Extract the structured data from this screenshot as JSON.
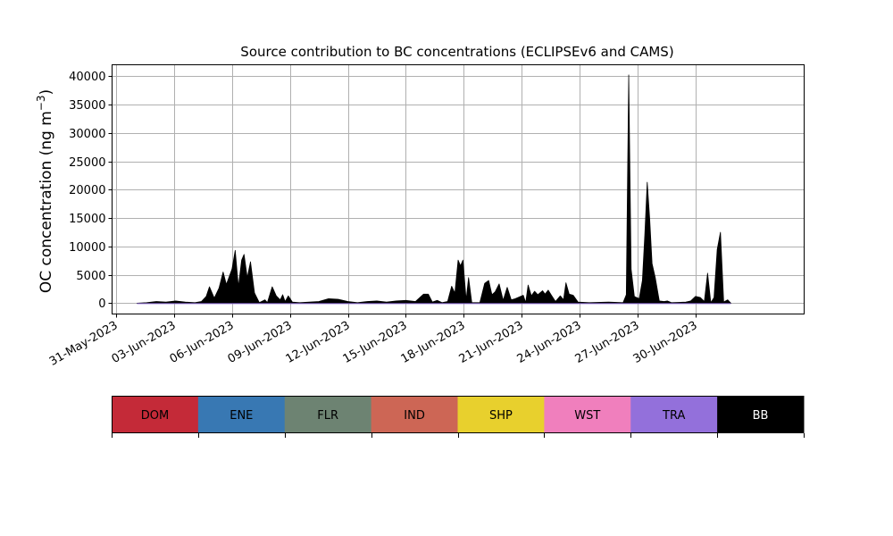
{
  "chart_data": {
    "type": "area",
    "title": "Source contribution to BC concentrations (ECLIPSEv6 and CAMS)",
    "ylabel_main": "OC concentration (ng m",
    "ylabel_sup": "−3",
    "ylabel_close": ")",
    "xlabel": "",
    "ylim": [
      -1900,
      42000
    ],
    "yticks": [
      0,
      5000,
      10000,
      15000,
      20000,
      25000,
      30000,
      35000,
      40000
    ],
    "ytick_labels": [
      "0",
      "5000",
      "10000",
      "15000",
      "20000",
      "25000",
      "30000",
      "35000",
      "40000"
    ],
    "x_date_range": [
      "2023-05-30T19:00",
      "2023-07-05T15:00"
    ],
    "xtick_labels": [
      "31-May-2023",
      "03-Jun-2023",
      "06-Jun-2023",
      "09-Jun-2023",
      "12-Jun-2023",
      "15-Jun-2023",
      "18-Jun-2023",
      "21-Jun-2023",
      "24-Jun-2023",
      "27-Jun-2023",
      "30-Jun-2023"
    ],
    "xtick_dates": [
      "2023-05-31",
      "2023-06-03",
      "2023-06-06",
      "2023-06-09",
      "2023-06-12",
      "2023-06-15",
      "2023-06-18",
      "2023-06-21",
      "2023-06-24",
      "2023-06-27",
      "2023-06-30"
    ],
    "grid": true,
    "series": [
      {
        "name": "BB",
        "color": "#000000",
        "points": [
          [
            "2023-06-01T02:00",
            0
          ],
          [
            "2023-06-01T14:00",
            100
          ],
          [
            "2023-06-02T02:00",
            300
          ],
          [
            "2023-06-02T14:00",
            200
          ],
          [
            "2023-06-03T02:00",
            400
          ],
          [
            "2023-06-03T14:00",
            200
          ],
          [
            "2023-06-04T02:00",
            100
          ],
          [
            "2023-06-04T10:00",
            300
          ],
          [
            "2023-06-04T16:00",
            1200
          ],
          [
            "2023-06-04T20:00",
            2900
          ],
          [
            "2023-06-05T02:00",
            900
          ],
          [
            "2023-06-05T08:00",
            2700
          ],
          [
            "2023-06-05T13:00",
            5500
          ],
          [
            "2023-06-05T17:00",
            3300
          ],
          [
            "2023-06-06T00:00",
            6000
          ],
          [
            "2023-06-06T04:00",
            9300
          ],
          [
            "2023-06-06T08:00",
            2900
          ],
          [
            "2023-06-06T12:00",
            7600
          ],
          [
            "2023-06-06T15:00",
            8600
          ],
          [
            "2023-06-06T19:00",
            4500
          ],
          [
            "2023-06-06T23:00",
            7300
          ],
          [
            "2023-06-07T04:00",
            1800
          ],
          [
            "2023-06-07T10:00",
            100
          ],
          [
            "2023-06-07T17:00",
            600
          ],
          [
            "2023-06-07T20:00",
            100
          ],
          [
            "2023-06-08T02:00",
            2900
          ],
          [
            "2023-06-08T07:00",
            1300
          ],
          [
            "2023-06-08T12:00",
            600
          ],
          [
            "2023-06-08T15:00",
            1500
          ],
          [
            "2023-06-08T18:00",
            300
          ],
          [
            "2023-06-08T22:00",
            1300
          ],
          [
            "2023-06-09T03:00",
            200
          ],
          [
            "2023-06-09T12:00",
            100
          ],
          [
            "2023-06-10T12:00",
            300
          ],
          [
            "2023-06-11T00:00",
            800
          ],
          [
            "2023-06-11T12:00",
            700
          ],
          [
            "2023-06-12T00:00",
            300
          ],
          [
            "2023-06-12T12:00",
            100
          ],
          [
            "2023-06-13T00:00",
            300
          ],
          [
            "2023-06-13T12:00",
            400
          ],
          [
            "2023-06-14T00:00",
            200
          ],
          [
            "2023-06-14T12:00",
            400
          ],
          [
            "2023-06-15T00:00",
            500
          ],
          [
            "2023-06-15T12:00",
            300
          ],
          [
            "2023-06-15T22:00",
            1600
          ],
          [
            "2023-06-16T04:00",
            1600
          ],
          [
            "2023-06-16T09:00",
            200
          ],
          [
            "2023-06-16T15:00",
            500
          ],
          [
            "2023-06-16T21:00",
            100
          ],
          [
            "2023-06-17T04:00",
            300
          ],
          [
            "2023-06-17T09:00",
            3000
          ],
          [
            "2023-06-17T13:00",
            1800
          ],
          [
            "2023-06-17T17:00",
            7600
          ],
          [
            "2023-06-17T20:00",
            6600
          ],
          [
            "2023-06-17T23:00",
            7600
          ],
          [
            "2023-06-18T03:00",
            600
          ],
          [
            "2023-06-18T06:00",
            4500
          ],
          [
            "2023-06-18T10:00",
            100
          ],
          [
            "2023-06-18T20:00",
            100
          ],
          [
            "2023-06-19T02:00",
            3500
          ],
          [
            "2023-06-19T07:00",
            4000
          ],
          [
            "2023-06-19T11:00",
            1500
          ],
          [
            "2023-06-19T15:00",
            2000
          ],
          [
            "2023-06-19T20:00",
            3400
          ],
          [
            "2023-06-20T01:00",
            500
          ],
          [
            "2023-06-20T06:00",
            2800
          ],
          [
            "2023-06-20T11:00",
            600
          ],
          [
            "2023-06-20T16:00",
            800
          ],
          [
            "2023-06-21T02:00",
            1400
          ],
          [
            "2023-06-21T05:00",
            100
          ],
          [
            "2023-06-21T08:00",
            3200
          ],
          [
            "2023-06-21T12:00",
            1300
          ],
          [
            "2023-06-21T16:00",
            2100
          ],
          [
            "2023-06-21T20:00",
            1500
          ],
          [
            "2023-06-22T02:00",
            2200
          ],
          [
            "2023-06-22T05:00",
            1600
          ],
          [
            "2023-06-22T09:00",
            2300
          ],
          [
            "2023-06-22T13:00",
            1400
          ],
          [
            "2023-06-22T18:00",
            300
          ],
          [
            "2023-06-23T00:00",
            1300
          ],
          [
            "2023-06-23T04:00",
            600
          ],
          [
            "2023-06-23T07:00",
            3600
          ],
          [
            "2023-06-23T11:00",
            1600
          ],
          [
            "2023-06-23T16:00",
            1400
          ],
          [
            "2023-06-23T22:00",
            200
          ],
          [
            "2023-06-24T12:00",
            100
          ],
          [
            "2023-06-25T12:00",
            200
          ],
          [
            "2023-06-26T06:00",
            100
          ],
          [
            "2023-06-26T10:00",
            1500
          ],
          [
            "2023-06-26T13:00",
            40200
          ],
          [
            "2023-06-26T16:00",
            6000
          ],
          [
            "2023-06-26T20:00",
            1200
          ],
          [
            "2023-06-27T02:00",
            800
          ],
          [
            "2023-06-27T06:00",
            4000
          ],
          [
            "2023-06-27T09:00",
            12000
          ],
          [
            "2023-06-27T12:00",
            21300
          ],
          [
            "2023-06-27T15:00",
            15000
          ],
          [
            "2023-06-27T18:00",
            7000
          ],
          [
            "2023-06-27T22:00",
            4500
          ],
          [
            "2023-06-28T03:00",
            400
          ],
          [
            "2023-06-28T09:00",
            300
          ],
          [
            "2023-06-28T13:00",
            400
          ],
          [
            "2023-06-28T18:00",
            100
          ],
          [
            "2023-06-29T12:00",
            200
          ],
          [
            "2023-06-29T18:00",
            400
          ],
          [
            "2023-06-30T00:00",
            1200
          ],
          [
            "2023-06-30T06:00",
            1000
          ],
          [
            "2023-06-30T11:00",
            300
          ],
          [
            "2023-06-30T15:00",
            5300
          ],
          [
            "2023-06-30T19:00",
            100
          ],
          [
            "2023-06-30T23:00",
            1000
          ],
          [
            "2023-07-01T03:00",
            9500
          ],
          [
            "2023-07-01T07:00",
            12500
          ],
          [
            "2023-07-01T11:00",
            200
          ],
          [
            "2023-07-01T16:00",
            600
          ],
          [
            "2023-07-01T20:00",
            0
          ]
        ]
      }
    ],
    "legend": {
      "placement": "bottom",
      "entries": [
        {
          "label": "DOM",
          "color": "#c42a38",
          "text_color": "#000000"
        },
        {
          "label": "ENE",
          "color": "#3878b3",
          "text_color": "#000000"
        },
        {
          "label": "FLR",
          "color": "#6d8372",
          "text_color": "#000000"
        },
        {
          "label": "IND",
          "color": "#cd6655",
          "text_color": "#000000"
        },
        {
          "label": "SHP",
          "color": "#e8d02d",
          "text_color": "#000000"
        },
        {
          "label": "WST",
          "color": "#f07fbd",
          "text_color": "#000000"
        },
        {
          "label": "TRA",
          "color": "#9370db",
          "text_color": "#000000"
        },
        {
          "label": "BB",
          "color": "#000000",
          "text_color": "#ffffff"
        }
      ]
    }
  }
}
